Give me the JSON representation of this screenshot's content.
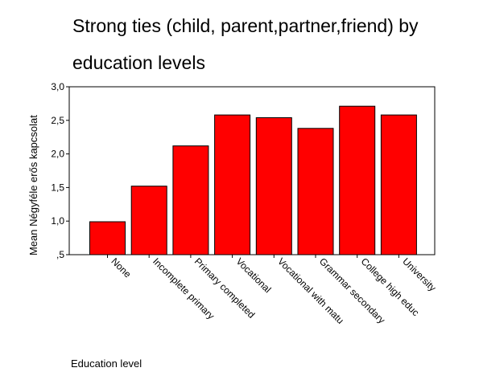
{
  "chart_data": {
    "type": "bar",
    "title_lines": [
      "Strong ties (child, parent,partner,friend)  by",
      "education levels"
    ],
    "xlabel": "Education level",
    "ylabel": "Mean Négyféle erős kapcsolat",
    "categories": [
      "None",
      "Incomplete primary",
      "Primary completed",
      "Vocational",
      "Vocational with matu",
      "Grammar secondary",
      "College high educ",
      "University"
    ],
    "values": [
      0.99,
      1.52,
      2.12,
      2.58,
      2.54,
      2.38,
      2.71,
      2.58
    ],
    "ylim": [
      0.5,
      3.0
    ],
    "yticks": [
      0.5,
      1.0,
      1.5,
      2.0,
      2.5,
      3.0
    ],
    "ytick_labels": [
      ",5",
      "1,0",
      "1,5",
      "2,0",
      "2,5",
      "3,0"
    ],
    "bar_color": "#ff0000",
    "grid": false,
    "legend": "none"
  }
}
